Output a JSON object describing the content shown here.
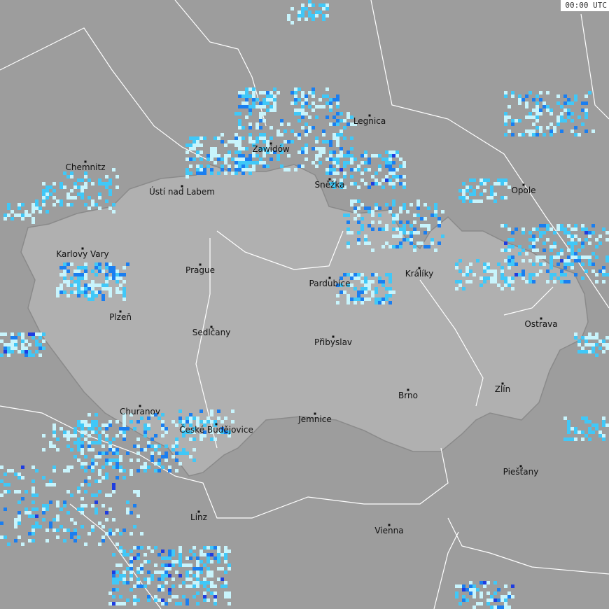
{
  "timestamp": "00:00 UTC",
  "colors": {
    "background": "#9d9d9d",
    "country": "#b0b0b0",
    "border": "#ffffff",
    "radar_light": "#c8f4fc",
    "radar_mid": "#40c8f8",
    "radar_strong": "#1a7ef0",
    "radar_heavy": "#1e3ce0"
  },
  "cities": [
    "Legnica",
    "Zawidów",
    "Chemnitz",
    "Ústí nad Labem",
    "Sněžka",
    "Opole",
    "Karlovy Vary",
    "Prague",
    "Pardubice",
    "Králíky",
    "Plzeň",
    "Ostrava",
    "Sedlčany",
    "Přibyslav",
    "Zlín",
    "Brno",
    "Churanov",
    "České Budějovice",
    "Jemnice",
    "Piešťany",
    "Linz",
    "Vienna"
  ]
}
